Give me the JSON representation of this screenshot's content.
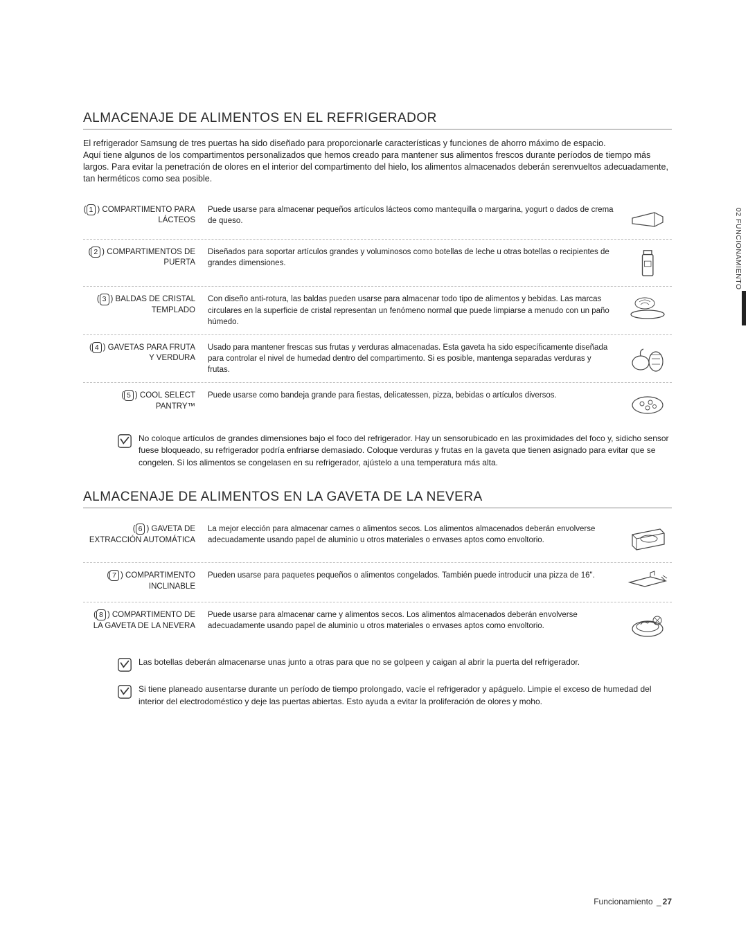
{
  "section1": {
    "title": "ALMACENAJE DE ALIMENTOS EN EL REFRIGERADOR",
    "intro": "El refrigerador Samsung de tres puertas ha sido diseñado para proporcionarle características y funciones de ahorro máximo de espacio.\nAquí tiene algunos de los compartimentos personalizados que hemos creado para mantener sus alimentos frescos durante períodos de tiempo más largos. Para evitar la penetración de olores en el interior del compartimento del hielo, los alimentos almacenados deberán serenvueltos adecuadamente, tan herméticos como sea posible.",
    "items": [
      {
        "num": "1",
        "label": "COMPARTIMENTO PARA LÁCTEOS",
        "desc": "Puede usarse para almacenar pequeños artículos lácteos como mantequilla o margarina, yogurt o dados de crema de queso."
      },
      {
        "num": "2",
        "label": "COMPARTIMENTOS DE PUERTA",
        "desc": "Diseñados para soportar artículos grandes y voluminosos como botellas de leche u otras botellas o recipientes de grandes dimensiones."
      },
      {
        "num": "3",
        "label": "BALDAS DE CRISTAL TEMPLADO",
        "desc": "Con diseño anti-rotura, las baldas pueden usarse para almacenar todo tipo de alimentos y bebidas. Las marcas circulares en la superficie de cristal representan un fenómeno normal que puede limpiarse a menudo con un paño húmedo."
      },
      {
        "num": "4",
        "label": "GAVETAS PARA FRUTA Y VERDURA",
        "desc": "Usado para mantener frescas sus frutas y verduras almacenadas. Esta gaveta ha sido específicamente diseñada para controlar el nivel de humedad dentro del compartimento. Si es posible, mantenga separadas verduras y frutas."
      },
      {
        "num": "5",
        "label": "COOL SELECT PANTRY™",
        "desc": "Puede usarse como bandeja grande para fiestas, delicatessen, pizza, bebidas o artículos diversos."
      }
    ],
    "note": "No coloque artículos de grandes dimensiones bajo el foco del refrigerador. Hay un sensorubicado en las proximidades del foco y, sidicho sensor fuese bloqueado, su refrigerador podría enfriarse demasiado. Coloque verduras y frutas en la gaveta que tienen asignado para evitar que se congelen. Si los alimentos se congelasen en su refrigerador, ajústelo a una temperatura más alta."
  },
  "section2": {
    "title": "ALMACENAJE DE ALIMENTOS EN LA GAVETA DE LA NEVERA",
    "items": [
      {
        "num": "6",
        "label": "GAVETA DE EXTRACCIÓN AUTOMÁTICA",
        "desc": "La mejor elección para almacenar carnes o alimentos secos. Los alimentos almacenados deberán envolverse adecuadamente usando papel de aluminio u otros materiales o envases aptos como envoltorio."
      },
      {
        "num": "7",
        "label": "COMPARTIMENTO INCLINABLE",
        "desc": "Pueden usarse para paquetes pequeños o alimentos congelados. También puede introducir una pizza de 16\"."
      },
      {
        "num": "8",
        "label": "COMPARTIMENTO DE LA GAVETA DE LA NEVERA",
        "desc": "Puede usarse para almacenar carne y alimentos secos. Los alimentos almacenados deberán envolverse adecuadamente usando papel de aluminio u otros materiales o envases aptos como envoltorio."
      }
    ],
    "notes": [
      "Las botellas deberán almacenarse unas junto a otras para que no se golpeen y caigan al abrir la puerta del refrigerador.",
      "Si tiene planeado ausentarse durante un período de tiempo prolongado, vacíe el refrigerador y apáguelo. Limpie el exceso de humedad del interior del electrodoméstico y deje las puertas abiertas. Esto ayuda a evitar la proliferación de olores y moho."
    ]
  },
  "sideTab": "02 FUNCIONAMIENTO",
  "footer": {
    "label": "Funcionamiento",
    "page": "27"
  }
}
